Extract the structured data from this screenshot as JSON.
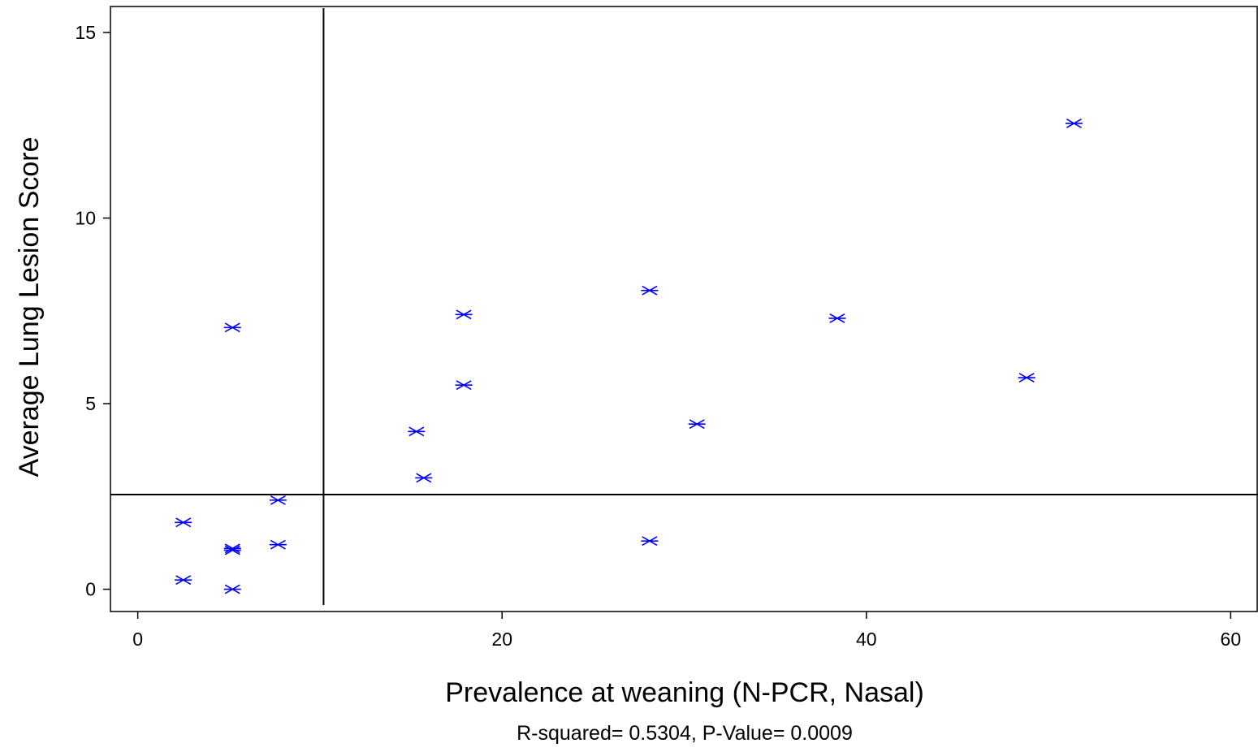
{
  "chart_data": {
    "type": "scatter",
    "xlabel": "Prevalence at weaning (N-PCR, Nasal)",
    "ylabel": "Average Lung Lesion Score",
    "note": "R-squared= 0.5304, P-Value= 0.0009",
    "xlim": [
      -1.5,
      61.5
    ],
    "ylim": [
      -0.6,
      15.7
    ],
    "x_ticks": [
      0,
      20,
      40,
      60
    ],
    "y_ticks": [
      0,
      5,
      10,
      15
    ],
    "grid": false,
    "legend": "none",
    "marker": "asterisk",
    "colors": {
      "points": "#0000ff",
      "reference_lines": "#000000",
      "axes": "#000000"
    },
    "reference_lines": {
      "x": 10.2,
      "y": 2.55
    },
    "points": [
      {
        "x": 2.5,
        "y": 1.8
      },
      {
        "x": 2.5,
        "y": 0.25
      },
      {
        "x": 5.2,
        "y": 7.05
      },
      {
        "x": 5.2,
        "y": 1.1
      },
      {
        "x": 5.2,
        "y": 1.05
      },
      {
        "x": 5.2,
        "y": 0.0
      },
      {
        "x": 7.7,
        "y": 2.4
      },
      {
        "x": 7.7,
        "y": 1.2
      },
      {
        "x": 15.3,
        "y": 4.25
      },
      {
        "x": 15.7,
        "y": 3.0
      },
      {
        "x": 17.9,
        "y": 7.4
      },
      {
        "x": 17.9,
        "y": 5.5
      },
      {
        "x": 28.1,
        "y": 8.05
      },
      {
        "x": 28.1,
        "y": 1.3
      },
      {
        "x": 30.7,
        "y": 4.45
      },
      {
        "x": 38.4,
        "y": 7.3
      },
      {
        "x": 48.8,
        "y": 5.7
      },
      {
        "x": 51.4,
        "y": 12.55
      }
    ]
  }
}
